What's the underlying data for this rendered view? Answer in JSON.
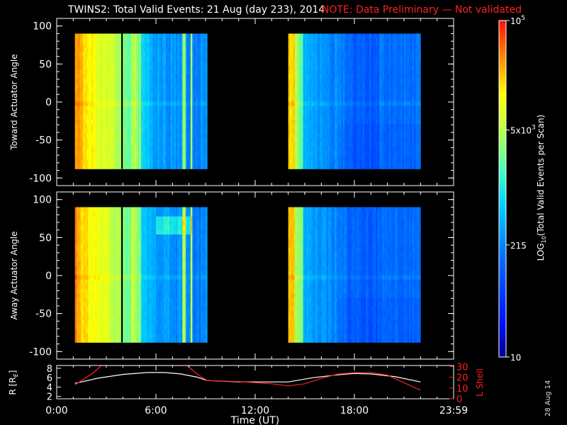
{
  "title": {
    "main": "TWINS2: Total Valid Events: 21 Aug (day 233), 2014",
    "note": "NOTE: Data Preliminary — Not validated"
  },
  "datestamp": "28 Aug 14",
  "colors": {
    "background": "#000000",
    "axes": "#ffffff",
    "note": "#ff2020",
    "l_shell": "#ff2020",
    "r_earth": "#ffffff"
  },
  "chart_data": [
    {
      "type": "heatmap",
      "panel": "toward",
      "ylabel": "Toward Actuator Angle",
      "ylim": [
        -110,
        110
      ],
      "y_ticks": [
        "100",
        "50",
        "0",
        "-50",
        "-100"
      ],
      "x_range_hours": [
        0,
        24
      ],
      "angle_range": [
        -88,
        90
      ],
      "data_blocks_hours": [
        [
          1.1,
          9.1
        ],
        [
          14.0,
          22.0
        ]
      ],
      "gap_lines_hours": [
        3.95
      ],
      "color_scale": "log",
      "color_range": [
        10,
        100000
      ]
    },
    {
      "type": "heatmap",
      "panel": "away",
      "ylabel": "Away Actuator Angle",
      "ylim": [
        -110,
        110
      ],
      "y_ticks": [
        "100",
        "50",
        "0",
        "-50",
        "-100"
      ],
      "x_range_hours": [
        0,
        24
      ],
      "angle_range": [
        -88,
        90
      ],
      "data_blocks_hours": [
        [
          1.1,
          9.1
        ],
        [
          14.0,
          22.0
        ]
      ],
      "gap_lines_hours": [
        3.95
      ],
      "color_scale": "log",
      "color_range": [
        10,
        100000
      ]
    },
    {
      "type": "line",
      "panel": "orbit",
      "ylabel_left": "R [R",
      "ylabel_left_sub": "E",
      "ylabel_left_close": "]",
      "ylabel_right": "L Shell",
      "x_ticks": [
        "0:00",
        "6:00",
        "12:00",
        "18:00",
        "23:59"
      ],
      "xlabel": "Time (UT)",
      "left_ticks": [
        "8",
        "6",
        "4",
        "2"
      ],
      "right_ticks": [
        "30",
        "20",
        "10",
        "0"
      ],
      "series": [
        {
          "axis": "left",
          "x": [
            1.1,
            2.5,
            4,
            5.5,
            6.5,
            7.5,
            8.5,
            9.1,
            11,
            13,
            14.0,
            15.5,
            17,
            18,
            19,
            20.5,
            22.0
          ],
          "y": [
            4.8,
            5.9,
            6.7,
            7.1,
            7.1,
            6.8,
            6.1,
            5.4,
            5.1,
            5.1,
            5.1,
            6.0,
            6.6,
            6.9,
            6.8,
            6.2,
            5.1
          ]
        },
        {
          "axis": "right",
          "x": [
            1.1,
            1.6,
            2.2,
            2.7,
            7.9,
            8.4,
            9.1,
            11,
            13,
            14.0,
            15,
            16,
            17,
            18,
            19,
            20,
            21,
            22.0
          ],
          "y": [
            13,
            18,
            24,
            31,
            31,
            24,
            17,
            16,
            14,
            12,
            14,
            19,
            23,
            24.5,
            24.5,
            22,
            15,
            8
          ]
        }
      ]
    }
  ],
  "colorbar": {
    "ticks": [
      {
        "value": 100000,
        "base": "10",
        "exp": "5"
      },
      {
        "value": 5000,
        "base": "5x10",
        "exp": "3"
      },
      {
        "value": 215,
        "base": "215",
        "exp": ""
      },
      {
        "value": 10,
        "base": "10",
        "exp": ""
      }
    ],
    "label_parts": [
      "LOG",
      "10",
      "(Total Valid  Events per Scan)"
    ],
    "range": [
      10,
      100000
    ]
  }
}
